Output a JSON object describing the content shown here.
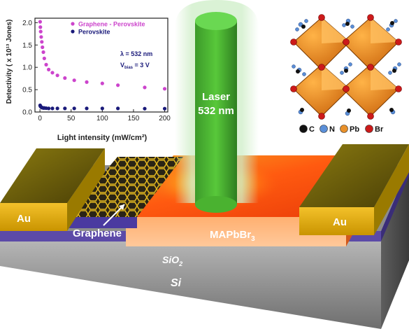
{
  "chart_data": {
    "type": "scatter",
    "xlabel": "Light intensity (mW/cm²)",
    "ylabel": "Detectivity ( x 10¹³ Jones)",
    "xlim": [
      -8,
      205
    ],
    "ylim": [
      0,
      2.1
    ],
    "xticks": [
      "0",
      "50",
      "100",
      "150",
      "200"
    ],
    "yticks": [
      "0.0",
      "0.5",
      "1.0",
      "1.5",
      "2.0"
    ],
    "legend_position": "top-right",
    "series": [
      {
        "name": "Graphene - Perovskite",
        "color": "#cc44cc",
        "x": [
          0.3,
          0.7,
          1.2,
          2,
          3,
          4,
          5.5,
          7,
          10,
          14,
          20,
          28,
          40,
          55,
          75,
          100,
          125,
          168,
          200
        ],
        "y": [
          2.02,
          1.9,
          1.8,
          1.68,
          1.57,
          1.45,
          1.34,
          1.2,
          1.06,
          0.95,
          0.88,
          0.82,
          0.76,
          0.71,
          0.67,
          0.64,
          0.6,
          0.55,
          0.52
        ]
      },
      {
        "name": "Perovskite",
        "color": "#1a1a7a",
        "x": [
          0.3,
          0.7,
          1.2,
          2,
          3,
          4,
          5.5,
          7,
          10,
          14,
          20,
          28,
          40,
          55,
          75,
          100,
          125,
          168,
          200
        ],
        "y": [
          0.15,
          0.13,
          0.12,
          0.11,
          0.1,
          0.095,
          0.09,
          0.09,
          0.085,
          0.08,
          0.08,
          0.08,
          0.08,
          0.08,
          0.08,
          0.08,
          0.08,
          0.075,
          0.075
        ]
      }
    ],
    "annotation": {
      "lambda": "λ = 532 nm",
      "vbias_main": "V",
      "vbias_sub": "bias",
      "vbias_rest": " = 3 V"
    }
  },
  "diagram": {
    "laser_line1": "Laser",
    "laser_line2": "532 nm",
    "au_left": "Au",
    "au_right": "Au",
    "graphene": "Graphene",
    "perovskite_main": "MAPbBr",
    "perovskite_sub": "3",
    "sio2_main": "SiO",
    "sio2_sub": "2",
    "si": "Si"
  },
  "crystal_legend": [
    {
      "label": "C",
      "color": "#111111"
    },
    {
      "label": "N",
      "color": "#5a8fd8"
    },
    {
      "label": "Pb",
      "color": "#e8902a"
    },
    {
      "label": "Br",
      "color": "#cc1a1a"
    }
  ]
}
